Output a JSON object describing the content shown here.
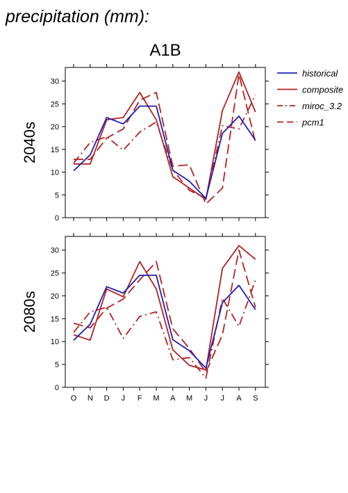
{
  "figure": {
    "title": "precipitation (mm):",
    "scenario": "A1B"
  },
  "legend": {
    "position": "right",
    "entries": [
      {
        "label": "historical",
        "color": "#1f1fb4",
        "dash": "solid"
      },
      {
        "label": "composite",
        "color": "#b22222",
        "dash": "solid"
      },
      {
        "label": "miroc_3.2",
        "color": "#b22222",
        "dash": "dashdot"
      },
      {
        "label": "pcm1",
        "color": "#b22222",
        "dash": "dashed"
      }
    ]
  },
  "chart_data": [
    {
      "type": "line",
      "title": "2040s",
      "ylabel": "2040s",
      "categories": [
        "O",
        "N",
        "D",
        "J",
        "F",
        "M",
        "A",
        "M",
        "J",
        "J",
        "A",
        "S"
      ],
      "ylim": [
        0,
        33
      ],
      "yticks": [
        0,
        5,
        10,
        15,
        20,
        25,
        30
      ],
      "grid": false,
      "series": [
        {
          "name": "historical",
          "values": [
            10.3,
            13.8,
            22.0,
            20.6,
            24.5,
            24.5,
            10.4,
            8.0,
            4.2,
            18.5,
            22.3,
            17.0
          ]
        },
        {
          "name": "composite",
          "values": [
            11.8,
            11.8,
            21.5,
            22.0,
            27.5,
            21.5,
            9.0,
            6.5,
            4.0,
            23.5,
            32.0,
            23.2
          ]
        },
        {
          "name": "miroc_3.2",
          "values": [
            12.0,
            16.5,
            17.8,
            14.8,
            18.8,
            21.0,
            10.5,
            6.0,
            4.2,
            20.2,
            19.5,
            27.0
          ]
        },
        {
          "name": "pcm1",
          "values": [
            12.8,
            12.8,
            17.5,
            19.5,
            25.8,
            27.5,
            11.3,
            11.6,
            3.0,
            6.5,
            31.5,
            16.5
          ]
        }
      ]
    },
    {
      "type": "line",
      "title": "2080s",
      "ylabel": "2080s",
      "categories": [
        "O",
        "N",
        "D",
        "J",
        "F",
        "M",
        "A",
        "M",
        "J",
        "J",
        "A",
        "S"
      ],
      "ylim": [
        0,
        33
      ],
      "yticks": [
        0,
        5,
        10,
        15,
        20,
        25,
        30
      ],
      "grid": false,
      "series": [
        {
          "name": "historical",
          "values": [
            10.3,
            13.8,
            22.0,
            20.6,
            24.5,
            24.5,
            10.4,
            8.0,
            4.2,
            18.5,
            22.3,
            17.0
          ]
        },
        {
          "name": "composite",
          "values": [
            11.5,
            10.3,
            21.5,
            19.8,
            27.5,
            21.5,
            8.2,
            4.8,
            3.8,
            26.0,
            31.0,
            28.0
          ]
        },
        {
          "name": "miroc_3.2",
          "values": [
            12.0,
            16.5,
            17.5,
            10.7,
            15.5,
            16.5,
            6.0,
            6.5,
            2.0,
            19.5,
            13.3,
            23.5
          ]
        },
        {
          "name": "pcm1",
          "values": [
            14.0,
            13.0,
            17.3,
            19.3,
            23.5,
            27.5,
            12.8,
            8.5,
            3.3,
            11.5,
            30.0,
            17.5
          ]
        }
      ]
    }
  ]
}
